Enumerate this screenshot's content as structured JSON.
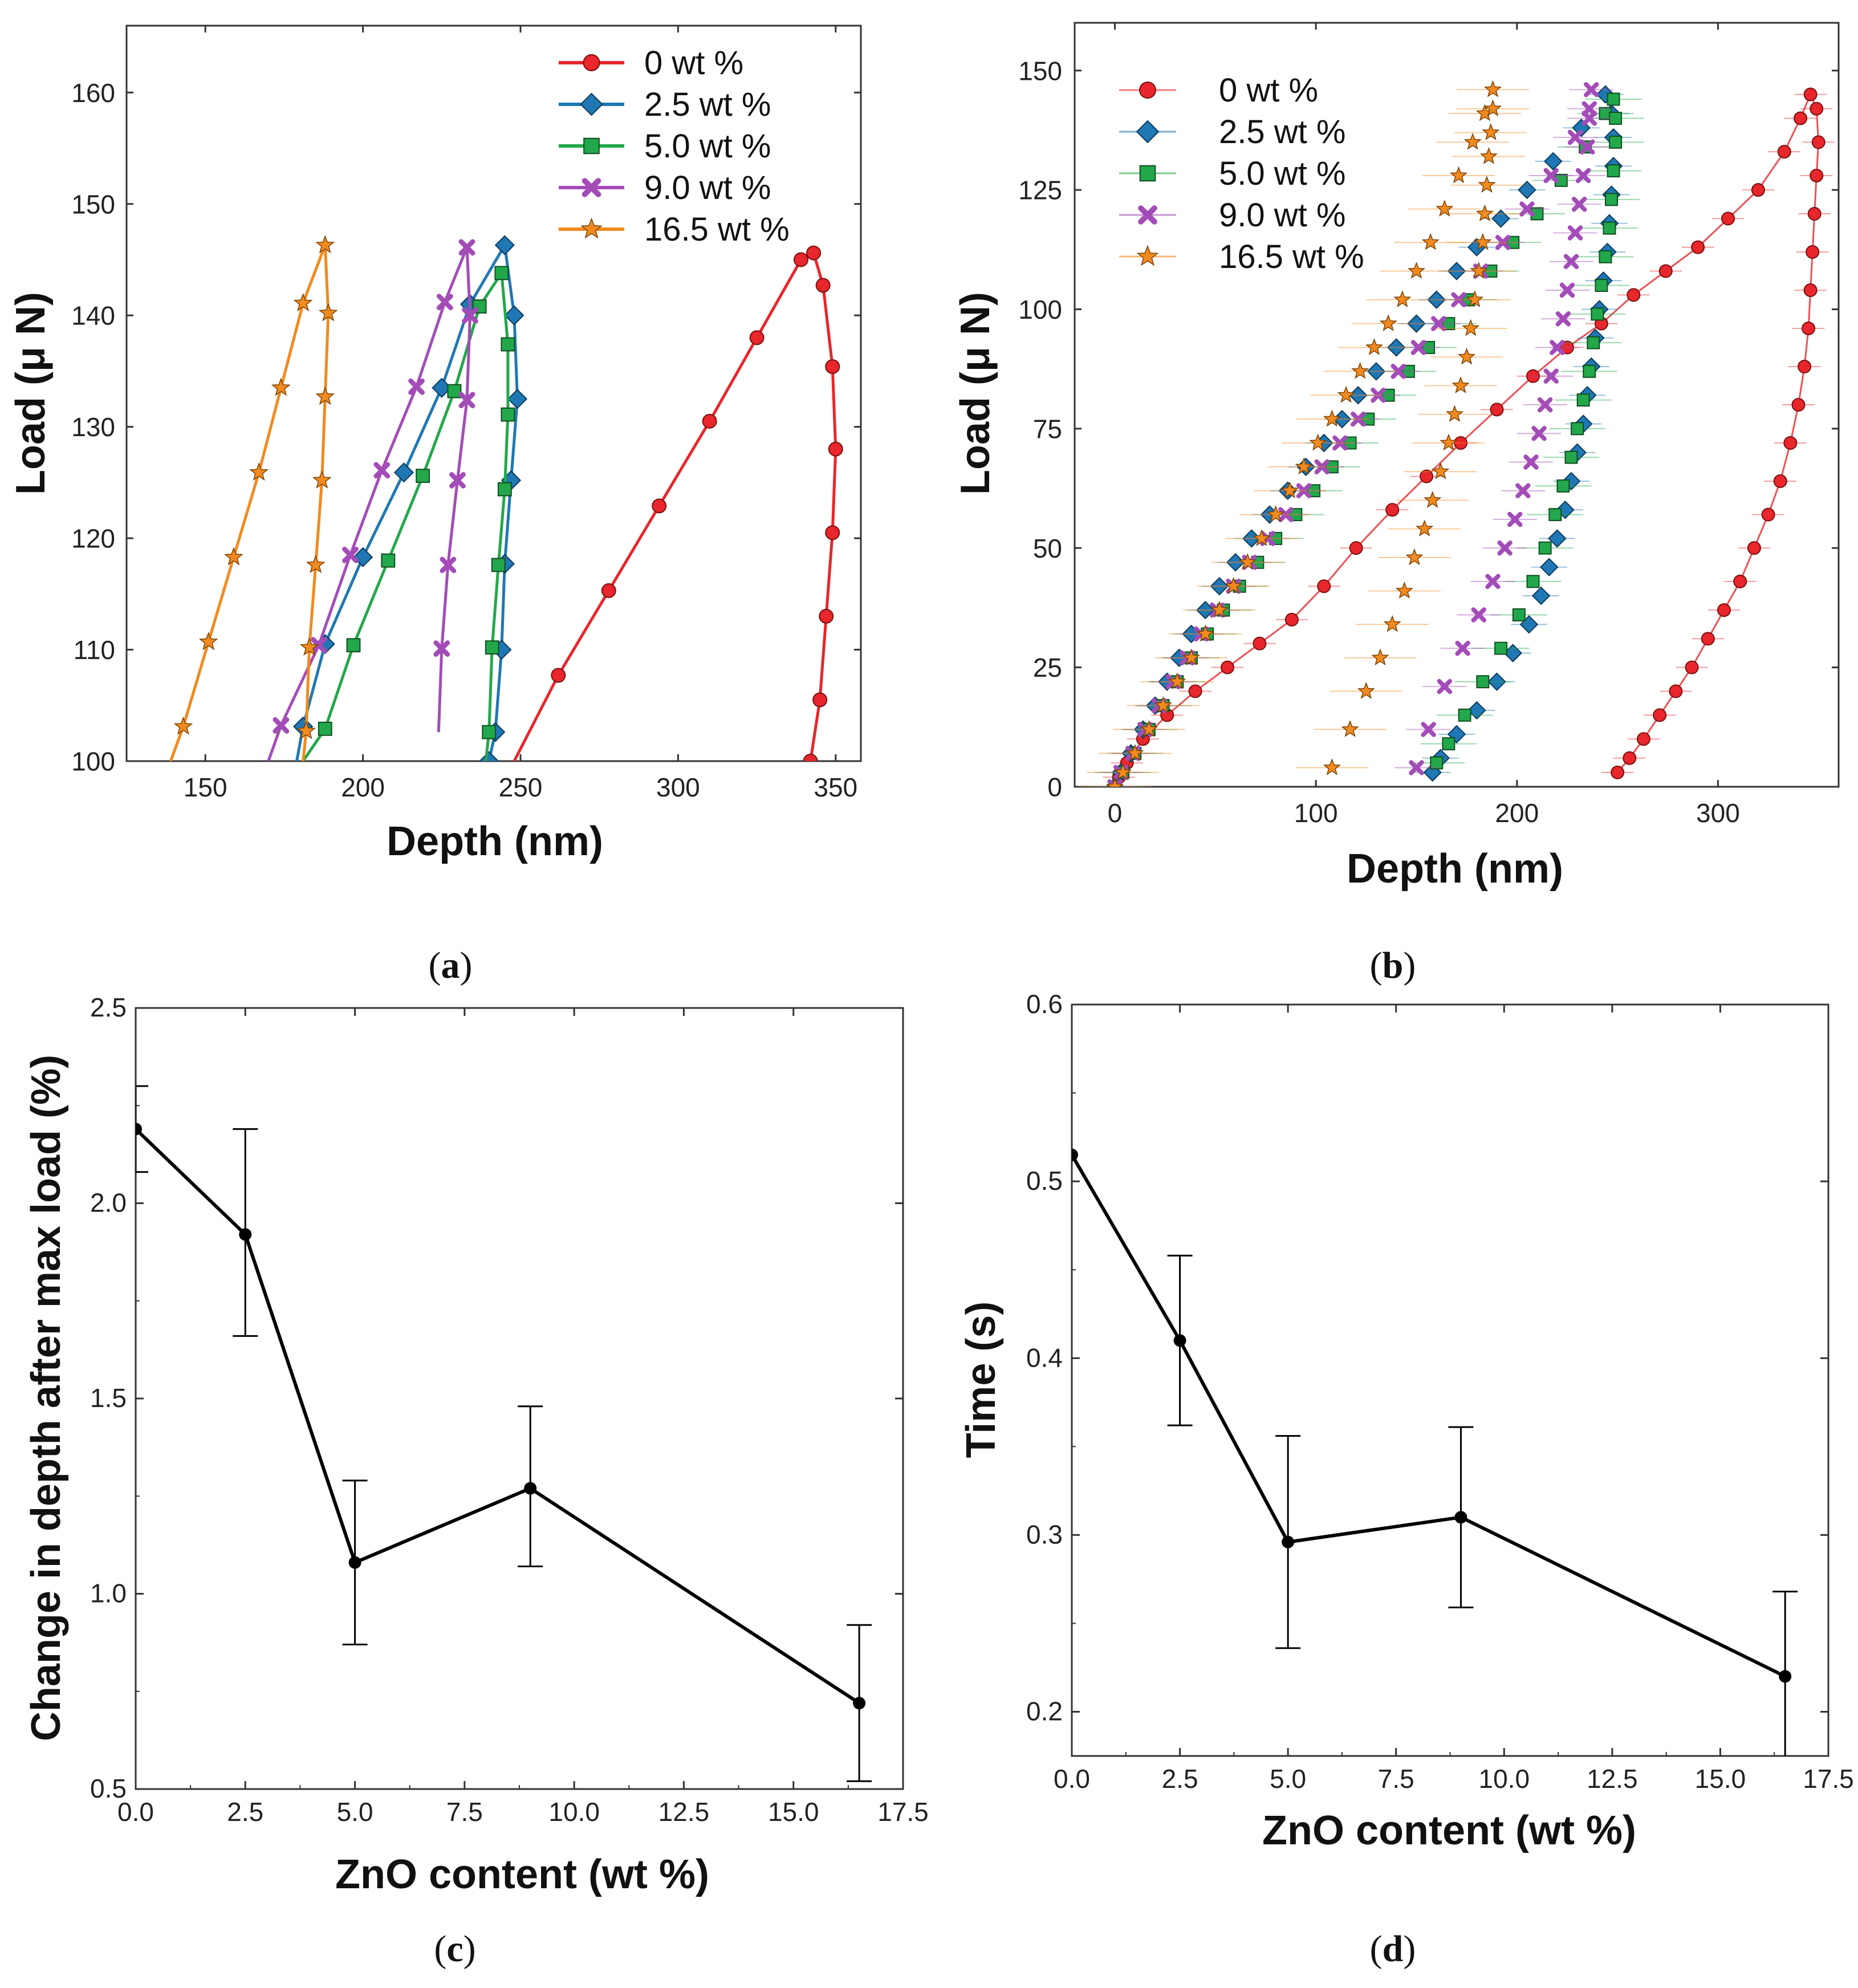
{
  "chart_data": [
    {
      "id": "a",
      "panel_label": "a",
      "type": "line",
      "xlabel": "Depth (nm)",
      "ylabel": "Load (μ N)",
      "xlim": [
        125,
        358
      ],
      "ylim": [
        100,
        166
      ],
      "xticks": [
        150,
        200,
        250,
        300,
        350
      ],
      "yticks": [
        100,
        110,
        120,
        130,
        140,
        150,
        160
      ],
      "legend_position": "top-right",
      "series": [
        {
          "name": "0 wt %",
          "color": "#e8262b",
          "marker": "circle",
          "x": [
            248,
            262,
            278,
            294,
            310,
            325,
            339,
            343,
            346,
            349,
            350,
            349,
            347,
            345,
            342,
            341
          ],
          "y": [
            100,
            107.7,
            115.3,
            122.9,
            130.5,
            138,
            145,
            145.6,
            142.7,
            135.4,
            128,
            120.5,
            113,
            105.5,
            100,
            100
          ]
        },
        {
          "name": "2.5 wt %",
          "color": "#1f78b4",
          "marker": "diamond",
          "x": [
            179,
            181,
            188,
            200,
            213,
            225,
            234,
            245,
            248,
            249,
            247,
            245,
            244,
            242,
            240,
            239
          ],
          "y": [
            100,
            103.1,
            110.5,
            118.3,
            125.9,
            133.5,
            141,
            146.3,
            140,
            132.5,
            125.2,
            117.7,
            110,
            102.6,
            100,
            100
          ]
        },
        {
          "name": "5.0 wt %",
          "color": "#22a84a",
          "marker": "square",
          "x": [
            181,
            188,
            197,
            208,
            219,
            229,
            237,
            244,
            246,
            246,
            245,
            243,
            241,
            240,
            239
          ],
          "y": [
            100,
            102.9,
            110.4,
            118,
            125.6,
            133.2,
            140.8,
            143.8,
            137.4,
            131.1,
            124.4,
            117.6,
            110.2,
            102.6,
            100
          ]
        },
        {
          "name": "9.0 wt %",
          "color": "#a34cb8",
          "marker": "x",
          "x": [
            170,
            174,
            186,
            196,
            206,
            217,
            226,
            233,
            234,
            233,
            230,
            227,
            225,
            224
          ],
          "y": [
            100,
            103.2,
            110.4,
            118.5,
            126.1,
            133.6,
            141.2,
            146.1,
            140,
            132.4,
            125.2,
            117.6,
            110.1,
            102.6
          ]
        },
        {
          "name": "16.5 wt %",
          "color": "#f28a1e",
          "marker": "star",
          "x": [
            139,
            143,
            151,
            159,
            167,
            174,
            181,
            188,
            189,
            188,
            187,
            185,
            183,
            182,
            181
          ],
          "y": [
            100,
            103.1,
            110.7,
            118.3,
            125.9,
            133.5,
            141.1,
            146.3,
            140.2,
            132.7,
            125.2,
            117.6,
            110.2,
            102.7,
            100
          ]
        }
      ]
    },
    {
      "id": "b",
      "panel_label": "b",
      "type": "scatter",
      "xlabel": "Depth (nm)",
      "ylabel": "Load (μ N)",
      "xlim": [
        -20,
        360
      ],
      "ylim": [
        0,
        160
      ],
      "xticks": [
        0,
        100,
        200,
        300
      ],
      "yticks": [
        0,
        25,
        50,
        75,
        100,
        125,
        150
      ],
      "error_bars": "horizontal",
      "legend_position": "top-left",
      "series": [
        {
          "name": "0 wt %",
          "color": "#e8262b",
          "marker": "circle",
          "xerr": 8,
          "x": [
            0,
            2,
            6,
            14,
            26,
            40,
            56,
            72,
            88,
            104,
            120,
            138,
            155,
            172,
            190,
            208,
            225,
            242,
            258,
            274,
            290,
            305,
            320,
            333,
            341,
            346,
            349,
            350,
            349,
            348,
            347,
            346,
            345,
            343,
            340,
            336,
            331,
            325,
            318,
            311,
            303,
            295,
            287,
            279,
            271,
            263,
            256,
            250
          ],
          "y": [
            0,
            2,
            5,
            10,
            15,
            20,
            25,
            30,
            35,
            42,
            50,
            58,
            65,
            72,
            79,
            86,
            92,
            97,
            103,
            108,
            113,
            119,
            125,
            133,
            140,
            145,
            142,
            135,
            128,
            120,
            112,
            104,
            96,
            88,
            80,
            72,
            64,
            57,
            50,
            43,
            37,
            31,
            25,
            20,
            15,
            10,
            6,
            3
          ]
        },
        {
          "name": "2.5 wt %",
          "color": "#1f78b4",
          "marker": "diamond",
          "xerr": 9,
          "x": [
            0,
            3,
            8,
            14,
            20,
            26,
            32,
            38,
            45,
            52,
            60,
            68,
            77,
            86,
            95,
            104,
            113,
            121,
            130,
            140,
            150,
            160,
            170,
            180,
            192,
            205,
            218,
            232,
            244,
            247,
            248,
            248,
            247,
            246,
            245,
            243,
            241,
            239,
            237,
            235,
            233,
            230,
            227,
            224,
            220,
            216,
            212,
            206,
            198,
            190,
            180,
            170,
            162,
            158
          ],
          "y": [
            0,
            3,
            7,
            12,
            17,
            22,
            27,
            32,
            37,
            42,
            47,
            52,
            57,
            62,
            67,
            72,
            77,
            82,
            87,
            92,
            97,
            102,
            108,
            113,
            119,
            125,
            131,
            138,
            145,
            141,
            136,
            130,
            124,
            118,
            112,
            106,
            100,
            94,
            88,
            82,
            76,
            70,
            64,
            58,
            52,
            46,
            40,
            34,
            28,
            22,
            16,
            11,
            6,
            3
          ]
        },
        {
          "name": "5.0 wt %",
          "color": "#22a84a",
          "marker": "square",
          "xerr": 14,
          "x": [
            0,
            4,
            10,
            17,
            24,
            31,
            38,
            46,
            54,
            62,
            71,
            80,
            90,
            99,
            108,
            117,
            126,
            136,
            146,
            156,
            166,
            176,
            187,
            198,
            210,
            222,
            234,
            244,
            248,
            249,
            249,
            248,
            247,
            246,
            244,
            242,
            240,
            238,
            236,
            233,
            230,
            227,
            223,
            219,
            214,
            208,
            201,
            192,
            183,
            174,
            166,
            160
          ],
          "y": [
            0,
            3,
            7,
            12,
            17,
            22,
            27,
            32,
            37,
            42,
            47,
            52,
            57,
            62,
            67,
            72,
            77,
            82,
            87,
            92,
            97,
            102,
            108,
            114,
            120,
            127,
            134,
            141,
            144,
            140,
            135,
            129,
            123,
            117,
            111,
            105,
            99,
            93,
            87,
            81,
            75,
            69,
            63,
            57,
            50,
            43,
            36,
            29,
            22,
            15,
            9,
            5
          ]
        },
        {
          "name": "9.0 wt %",
          "color": "#a34cb8",
          "marker": "x",
          "xerr": 11,
          "x": [
            0,
            3,
            9,
            15,
            22,
            29,
            36,
            43,
            51,
            59,
            67,
            76,
            85,
            94,
            103,
            112,
            121,
            131,
            141,
            151,
            161,
            171,
            182,
            193,
            205,
            217,
            229,
            236,
            237,
            236,
            235,
            233,
            231,
            229,
            227,
            225,
            223,
            220,
            217,
            214,
            211,
            207,
            203,
            199,
            194,
            188,
            181,
            173,
            164,
            156,
            150
          ],
          "y": [
            0,
            3,
            7,
            12,
            17,
            22,
            27,
            32,
            37,
            42,
            47,
            52,
            57,
            62,
            67,
            72,
            77,
            82,
            87,
            92,
            97,
            102,
            108,
            114,
            121,
            128,
            136,
            142,
            146,
            140,
            134,
            128,
            122,
            116,
            110,
            104,
            98,
            92,
            86,
            80,
            74,
            68,
            62,
            56,
            50,
            43,
            36,
            29,
            21,
            12,
            4
          ]
        },
        {
          "name": "16.5 wt %",
          "color": "#f28a1e",
          "marker": "star",
          "xerr": 18,
          "x": [
            0,
            4,
            10,
            17,
            24,
            31,
            38,
            45,
            52,
            59,
            66,
            73,
            80,
            87,
            94,
            101,
            108,
            115,
            122,
            129,
            136,
            143,
            150,
            157,
            164,
            171,
            178,
            184,
            188,
            188,
            187,
            186,
            185,
            184,
            183,
            181,
            179,
            177,
            175,
            172,
            169,
            166,
            162,
            158,
            154,
            149,
            144,
            138,
            132,
            125,
            117,
            108
          ],
          "y": [
            0,
            3,
            7,
            12,
            17,
            22,
            27,
            32,
            37,
            42,
            47,
            52,
            57,
            62,
            67,
            72,
            77,
            82,
            87,
            92,
            97,
            102,
            108,
            114,
            121,
            128,
            135,
            141,
            146,
            142,
            137,
            132,
            126,
            120,
            114,
            108,
            102,
            96,
            90,
            84,
            78,
            72,
            66,
            60,
            54,
            48,
            41,
            34,
            27,
            20,
            12,
            4
          ]
        }
      ]
    },
    {
      "id": "c",
      "panel_label": "c",
      "type": "line",
      "xlabel": "ZnO content (wt %)",
      "ylabel": "Change in depth after max load (%)",
      "xlim": [
        0,
        17.5
      ],
      "ylim": [
        0.5,
        2.5
      ],
      "xticks": [
        "0.0",
        "2.5",
        "5.0",
        "7.5",
        "10.0",
        "12.5",
        "15.0",
        "17.5"
      ],
      "yticks": [
        "0.5",
        "1.0",
        "1.5",
        "2.0",
        "2.5"
      ],
      "series": [
        {
          "name": "Change in depth",
          "color": "#000000",
          "x": [
            0,
            2.5,
            5.0,
            9.0,
            16.5
          ],
          "y": [
            2.19,
            1.92,
            1.08,
            1.27,
            0.72
          ],
          "yerr_low": [
            0.11,
            0.26,
            0.21,
            0.2,
            0.2
          ],
          "yerr_high": [
            0.11,
            0.27,
            0.21,
            0.21,
            0.2
          ]
        }
      ]
    },
    {
      "id": "d",
      "panel_label": "d",
      "type": "line",
      "xlabel": "ZnO content (wt %)",
      "ylabel": "Time (s)",
      "xlim": [
        0,
        17.5
      ],
      "ylim": [
        0.175,
        0.6
      ],
      "xticks": [
        "0.0",
        "2.5",
        "5.0",
        "7.5",
        "10.0",
        "12.5",
        "15.0",
        "17.5"
      ],
      "yticks": [
        "0.2",
        "0.3",
        "0.4",
        "0.5",
        "0.6"
      ],
      "series": [
        {
          "name": "Time",
          "color": "#000000",
          "x": [
            0,
            2.5,
            5.0,
            9.0,
            16.5
          ],
          "y": [
            0.515,
            0.41,
            0.296,
            0.31,
            0.22
          ],
          "yerr_low": [
            0.0,
            0.048,
            0.06,
            0.051,
            0.05
          ],
          "yerr_high": [
            0.0,
            0.048,
            0.06,
            0.051,
            0.048
          ]
        }
      ]
    }
  ]
}
